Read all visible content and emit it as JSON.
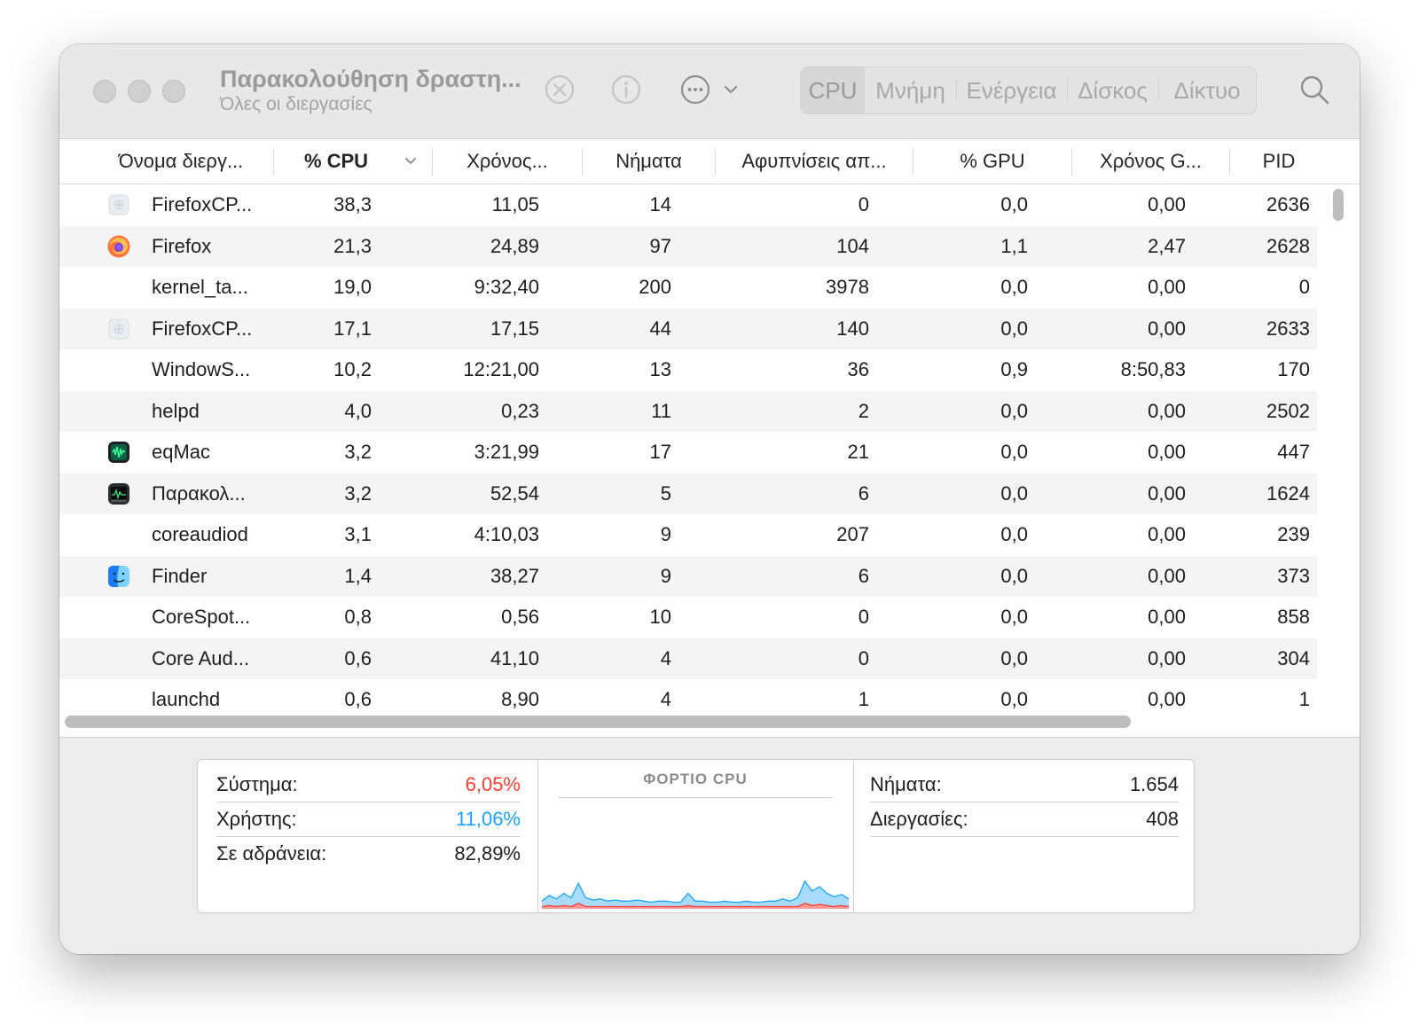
{
  "window": {
    "title": "Παρακολούθηση δραστη...",
    "subtitle": "Όλες οι διεργασίες"
  },
  "toolbar": {
    "stop_icon": "x-circle-icon",
    "info_icon": "info-circle-icon",
    "more_icon": "ellipsis-circle-icon",
    "search_icon": "search-icon",
    "tabs": [
      {
        "label": "CPU",
        "active": true
      },
      {
        "label": "Μνήμη",
        "active": false
      },
      {
        "label": "Ενέργεια",
        "active": false
      },
      {
        "label": "Δίσκος",
        "active": false
      },
      {
        "label": "Δίκτυο",
        "active": false
      }
    ]
  },
  "table": {
    "columns": [
      "Όνομα διεργ...",
      "% CPU",
      "Χρόνος...",
      "Νήματα",
      "Αφυπνίσεις απ...",
      "% GPU",
      "Χρόνος G...",
      "PID"
    ],
    "sorted_column": "% CPU",
    "rows": [
      {
        "icon": "generic-app-icon",
        "name": "FirefoxCP...",
        "cpu": "38,3",
        "time": "11,05",
        "threads": "14",
        "wakeups": "0",
        "gpu": "0,0",
        "gputime": "0,00",
        "pid": "2636"
      },
      {
        "icon": "firefox-icon",
        "name": "Firefox",
        "cpu": "21,3",
        "time": "24,89",
        "threads": "97",
        "wakeups": "104",
        "gpu": "1,1",
        "gputime": "2,47",
        "pid": "2628"
      },
      {
        "icon": "",
        "name": "kernel_ta...",
        "cpu": "19,0",
        "time": "9:32,40",
        "threads": "200",
        "wakeups": "3978",
        "gpu": "0,0",
        "gputime": "0,00",
        "pid": "0"
      },
      {
        "icon": "generic-app-icon",
        "name": "FirefoxCP...",
        "cpu": "17,1",
        "time": "17,15",
        "threads": "44",
        "wakeups": "140",
        "gpu": "0,0",
        "gputime": "0,00",
        "pid": "2633"
      },
      {
        "icon": "",
        "name": "WindowS...",
        "cpu": "10,2",
        "time": "12:21,00",
        "threads": "13",
        "wakeups": "36",
        "gpu": "0,9",
        "gputime": "8:50,83",
        "pid": "170"
      },
      {
        "icon": "",
        "name": "helpd",
        "cpu": "4,0",
        "time": "0,23",
        "threads": "11",
        "wakeups": "2",
        "gpu": "0,0",
        "gputime": "0,00",
        "pid": "2502"
      },
      {
        "icon": "eqmac-icon",
        "name": "eqMac",
        "cpu": "3,2",
        "time": "3:21,99",
        "threads": "17",
        "wakeups": "21",
        "gpu": "0,0",
        "gputime": "0,00",
        "pid": "447"
      },
      {
        "icon": "activity-monitor-icon",
        "name": "Παρακολ...",
        "cpu": "3,2",
        "time": "52,54",
        "threads": "5",
        "wakeups": "6",
        "gpu": "0,0",
        "gputime": "0,00",
        "pid": "1624"
      },
      {
        "icon": "",
        "name": "coreaudiod",
        "cpu": "3,1",
        "time": "4:10,03",
        "threads": "9",
        "wakeups": "207",
        "gpu": "0,0",
        "gputime": "0,00",
        "pid": "239"
      },
      {
        "icon": "finder-icon",
        "name": "Finder",
        "cpu": "1,4",
        "time": "38,27",
        "threads": "9",
        "wakeups": "6",
        "gpu": "0,0",
        "gputime": "0,00",
        "pid": "373"
      },
      {
        "icon": "",
        "name": "CoreSpot...",
        "cpu": "0,8",
        "time": "0,56",
        "threads": "10",
        "wakeups": "0",
        "gpu": "0,0",
        "gputime": "0,00",
        "pid": "858"
      },
      {
        "icon": "",
        "name": "Core Aud...",
        "cpu": "0,6",
        "time": "41,10",
        "threads": "4",
        "wakeups": "0",
        "gpu": "0,0",
        "gputime": "0,00",
        "pid": "304"
      },
      {
        "icon": "",
        "name": "launchd",
        "cpu": "0,6",
        "time": "8,90",
        "threads": "4",
        "wakeups": "1",
        "gpu": "0,0",
        "gputime": "0,00",
        "pid": "1"
      }
    ]
  },
  "stats": {
    "system_label": "Σύστημα:",
    "system_value": "6,05%",
    "user_label": "Χρήστης:",
    "user_value": "11,06%",
    "idle_label": "Σε αδράνεια:",
    "idle_value": "82,89%",
    "load_title": "ΦΟΡΤΙΟ CPU",
    "threads_label": "Νήματα:",
    "threads_value": "1.654",
    "processes_label": "Διεργασίες:",
    "processes_value": "408"
  },
  "colors": {
    "system": "#ff3b30",
    "user": "#1aa3ff"
  },
  "cpu_load": {
    "user_series": [
      5,
      9,
      7,
      11,
      8,
      18,
      8,
      6,
      7,
      5,
      6,
      5,
      5,
      6,
      5,
      4,
      5,
      5,
      4,
      4,
      11,
      5,
      5,
      4,
      4,
      5,
      4,
      4,
      5,
      4,
      4,
      5,
      5,
      7,
      5,
      8,
      20,
      13,
      16,
      11,
      9,
      10,
      7
    ],
    "system_series": [
      2,
      3,
      2,
      3,
      2,
      5,
      2,
      2,
      2,
      2,
      2,
      2,
      2,
      2,
      2,
      2,
      2,
      2,
      2,
      2,
      3,
      2,
      2,
      2,
      2,
      2,
      2,
      2,
      2,
      2,
      2,
      2,
      2,
      2,
      2,
      2,
      5,
      3,
      4,
      3,
      2,
      3,
      2
    ]
  }
}
